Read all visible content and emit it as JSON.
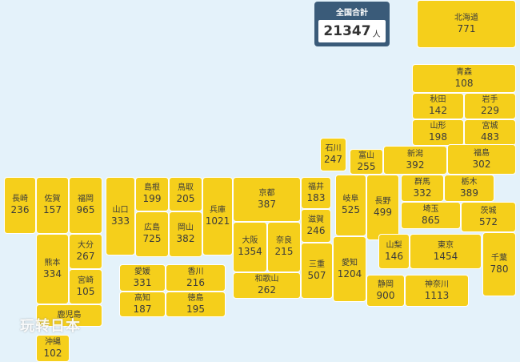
{
  "total": {
    "label": "全国合計",
    "value": "21347",
    "unit": "人"
  },
  "watermark": "玩转日本",
  "prefectures": [
    {
      "id": "hokkaido",
      "name": "北海道",
      "value": "771"
    },
    {
      "id": "aomori",
      "name": "青森",
      "value": "108"
    },
    {
      "id": "akita",
      "name": "秋田",
      "value": "142"
    },
    {
      "id": "iwate",
      "name": "岩手",
      "value": "229"
    },
    {
      "id": "yamagata",
      "name": "山形",
      "value": "198"
    },
    {
      "id": "miyagi",
      "name": "宮城",
      "value": "483"
    },
    {
      "id": "ishikawa",
      "name": "石川",
      "value": "247"
    },
    {
      "id": "toyama",
      "name": "富山",
      "value": "255"
    },
    {
      "id": "niigata",
      "name": "新潟",
      "value": "392"
    },
    {
      "id": "fukushima",
      "name": "福島",
      "value": "302"
    },
    {
      "id": "nagasaki",
      "name": "長崎",
      "value": "236"
    },
    {
      "id": "saga",
      "name": "佐賀",
      "value": "157"
    },
    {
      "id": "fukuoka",
      "name": "福岡",
      "value": "965"
    },
    {
      "id": "yamaguchi",
      "name": "山口",
      "value": "333"
    },
    {
      "id": "shimane",
      "name": "島根",
      "value": "199"
    },
    {
      "id": "tottori",
      "name": "鳥取",
      "value": "205"
    },
    {
      "id": "hyogo",
      "name": "兵庫",
      "value": "1021"
    },
    {
      "id": "kyoto",
      "name": "京都",
      "value": "387"
    },
    {
      "id": "fukui",
      "name": "福井",
      "value": "183"
    },
    {
      "id": "gifu",
      "name": "岐阜",
      "value": "525"
    },
    {
      "id": "nagano",
      "name": "長野",
      "value": "499"
    },
    {
      "id": "gunma",
      "name": "群馬",
      "value": "332"
    },
    {
      "id": "tochigi",
      "name": "栃木",
      "value": "389"
    },
    {
      "id": "saitama",
      "name": "埼玉",
      "value": "865"
    },
    {
      "id": "ibaraki",
      "name": "茨城",
      "value": "572"
    },
    {
      "id": "hiroshima",
      "name": "広島",
      "value": "725"
    },
    {
      "id": "okayama",
      "name": "岡山",
      "value": "382"
    },
    {
      "id": "shiga",
      "name": "滋賀",
      "value": "246"
    },
    {
      "id": "osaka",
      "name": "大阪",
      "value": "1354"
    },
    {
      "id": "nara",
      "name": "奈良",
      "value": "215"
    },
    {
      "id": "kumamoto",
      "name": "熊本",
      "value": "334"
    },
    {
      "id": "oita",
      "name": "大分",
      "value": "267"
    },
    {
      "id": "miyazaki",
      "name": "宮崎",
      "value": "105"
    },
    {
      "id": "yamanashi",
      "name": "山梨",
      "value": "146"
    },
    {
      "id": "tokyo",
      "name": "東京",
      "value": "1454"
    },
    {
      "id": "chiba",
      "name": "千葉",
      "value": "780"
    },
    {
      "id": "ehime",
      "name": "愛媛",
      "value": "331"
    },
    {
      "id": "kagawa",
      "name": "香川",
      "value": "216"
    },
    {
      "id": "mie",
      "name": "三重",
      "value": "507"
    },
    {
      "id": "aichi",
      "name": "愛知",
      "value": "1204"
    },
    {
      "id": "kochi",
      "name": "高知",
      "value": "187"
    },
    {
      "id": "tokushima",
      "name": "徳島",
      "value": "195"
    },
    {
      "id": "wakayama",
      "name": "和歌山",
      "value": "262"
    },
    {
      "id": "shizuoka",
      "name": "静岡",
      "value": "900"
    },
    {
      "id": "kanagawa",
      "name": "神奈川",
      "value": "1113"
    },
    {
      "id": "kagoshima",
      "name": "鹿児島",
      "value": ""
    },
    {
      "id": "okinawa",
      "name": "沖縄",
      "value": "102"
    }
  ]
}
